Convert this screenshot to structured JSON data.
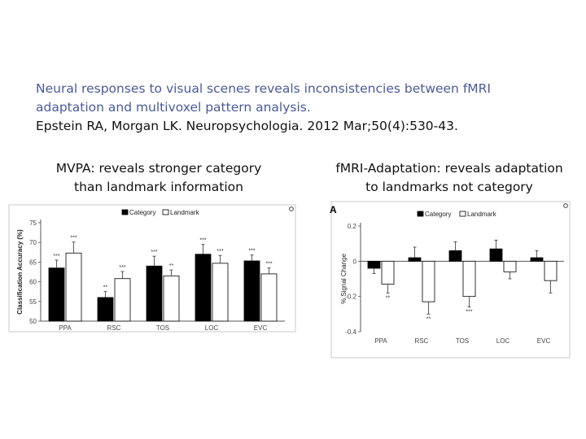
{
  "slide": {
    "title_line1": "Neural responses to visual scenes reveals inconsistencies between fMRI",
    "title_line2": "adaptation and multivoxel pattern analysis.",
    "citation": "Epstein RA, Morgan LK. Neuropsychologia. 2012 Mar;50(4):530-43."
  },
  "captions": {
    "left_line1": "MVPA: reveals stronger category",
    "left_line2": "than landmark information",
    "right_line1": "fMRI-Adaptation: reveals adaptation",
    "right_line2": "to landmarks not category"
  },
  "colors": {
    "title": "#4a5a9a",
    "category_bar": "#000000",
    "landmark_bar": "#ffffff"
  },
  "chart_data": [
    {
      "type": "bar",
      "title": "",
      "xlabel": "",
      "ylabel": "Classification Accuracy (%)",
      "ylim": [
        50,
        75
      ],
      "yticks": [
        "50",
        "55",
        "60",
        "65",
        "70",
        "75"
      ],
      "categories": [
        "PPA",
        "RSC",
        "TOS",
        "LOC",
        "EVC"
      ],
      "legend_position": "top",
      "series": [
        {
          "name": "Category",
          "values": [
            63.5,
            56.0,
            64.0,
            67.0,
            65.3
          ],
          "errors": [
            2.0,
            1.5,
            2.5,
            2.5,
            1.5
          ],
          "sig": [
            "***",
            "**",
            "***",
            "***",
            "***"
          ]
        },
        {
          "name": "Landmark",
          "values": [
            67.3,
            60.8,
            61.5,
            64.7,
            62.0
          ],
          "errors": [
            2.8,
            1.8,
            1.5,
            2.0,
            1.5
          ],
          "sig": [
            "***",
            "***",
            "**",
            "***",
            "***"
          ]
        }
      ]
    },
    {
      "type": "bar",
      "title": "",
      "panel_label": "A",
      "xlabel": "",
      "ylabel": "% Signal Change",
      "ylim": [
        -0.4,
        0.2
      ],
      "yticks": [
        "-0.4",
        "-0.2",
        "0",
        "0.2"
      ],
      "categories": [
        "PPA",
        "RSC",
        "TOS",
        "LOC",
        "EVC"
      ],
      "legend_position": "top",
      "series": [
        {
          "name": "Category",
          "values": [
            -0.04,
            0.02,
            0.06,
            0.07,
            0.02
          ],
          "errors": [
            0.03,
            0.06,
            0.05,
            0.05,
            0.04
          ],
          "sig": [
            "",
            "",
            "",
            "",
            ""
          ]
        },
        {
          "name": "Landmark",
          "values": [
            -0.13,
            -0.23,
            -0.2,
            -0.06,
            -0.11
          ],
          "errors": [
            0.05,
            0.07,
            0.06,
            0.04,
            0.07
          ],
          "sig": [
            "**",
            "**",
            "***",
            "",
            ""
          ]
        }
      ]
    }
  ]
}
